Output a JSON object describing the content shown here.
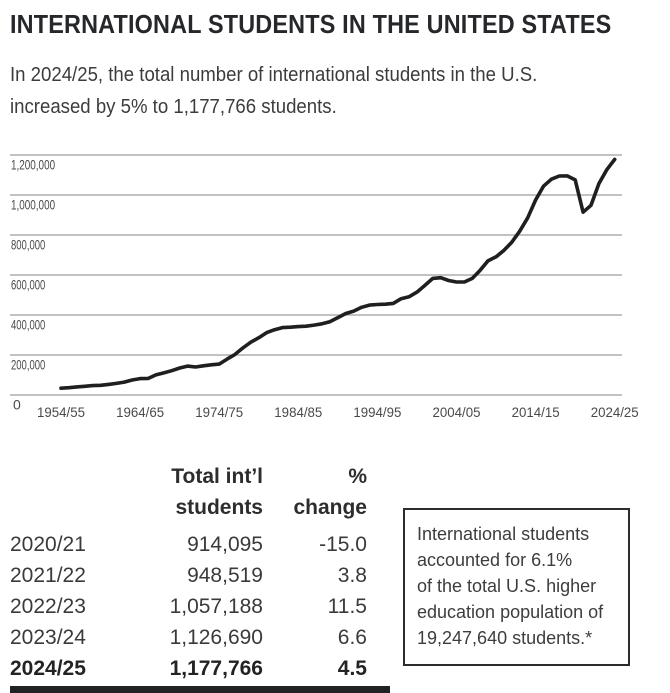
{
  "header": {
    "title": "INTERNATIONAL STUDENTS IN THE UNITED STATES",
    "subtitle": "In 2024/25, the total number of international students in the U.S.\nincreased by 5% to 1,177,766 students."
  },
  "chart_data": {
    "type": "line",
    "title": "International students in the United States, 1954/55 to 2024/25",
    "xlabel": "",
    "ylabel": "",
    "ylim": [
      0,
      1200000
    ],
    "grid": "horizontal",
    "legend": "none",
    "line_color": "#1f1f20",
    "grid_color": "#9d9d9f",
    "tick_label_color": "#4a4a4a",
    "x_tick_labels": [
      "1954/55",
      "1964/65",
      "1974/75",
      "1984/85",
      "1994/95",
      "2004/05",
      "2014/15",
      "2024/25"
    ],
    "y_tick_values": [
      0,
      200000,
      400000,
      600000,
      800000,
      1000000,
      1200000
    ],
    "y_tick_labels": [
      "0",
      "200,000",
      "400,000",
      "600,000",
      "800,000",
      "1,000,000",
      "1,200,000"
    ],
    "series": [
      {
        "name": "Total international students",
        "x": [
          "1954/55",
          "1955/56",
          "1956/57",
          "1957/58",
          "1958/59",
          "1959/60",
          "1960/61",
          "1961/62",
          "1962/63",
          "1963/64",
          "1964/65",
          "1965/66",
          "1966/67",
          "1967/68",
          "1968/69",
          "1969/70",
          "1970/71",
          "1971/72",
          "1972/73",
          "1973/74",
          "1974/75",
          "1975/76",
          "1976/77",
          "1977/78",
          "1978/79",
          "1979/80",
          "1980/81",
          "1981/82",
          "1982/83",
          "1983/84",
          "1984/85",
          "1985/86",
          "1986/87",
          "1987/88",
          "1988/89",
          "1989/90",
          "1990/91",
          "1991/92",
          "1992/93",
          "1993/94",
          "1994/95",
          "1995/96",
          "1996/97",
          "1997/98",
          "1998/99",
          "1999/00",
          "2000/01",
          "2001/02",
          "2002/03",
          "2003/04",
          "2004/05",
          "2005/06",
          "2006/07",
          "2007/08",
          "2008/09",
          "2009/10",
          "2010/11",
          "2011/12",
          "2012/13",
          "2013/14",
          "2014/15",
          "2015/16",
          "2016/17",
          "2017/18",
          "2018/19",
          "2019/20",
          "2020/21",
          "2021/22",
          "2022/23",
          "2023/24",
          "2024/25"
        ],
        "values": [
          34232,
          36494,
          40666,
          43391,
          47245,
          48486,
          53107,
          58086,
          64705,
          74814,
          82045,
          82709,
          100262,
          110315,
          121362,
          134959,
          144708,
          140126,
          146097,
          151066,
          154580,
          179344,
          203068,
          235509,
          263938,
          286343,
          311882,
          326299,
          336985,
          338894,
          342113,
          343777,
          349609,
          356187,
          366354,
          386851,
          407529,
          419585,
          438618,
          449749,
          452635,
          453787,
          457984,
          481280,
          490933,
          514723,
          547867,
          582996,
          586323,
          572509,
          565039,
          564766,
          582984,
          623805,
          671616,
          690923,
          723277,
          764495,
          819644,
          886052,
          974926,
          1043839,
          1078822,
          1094792,
          1095299,
          1075496,
          914095,
          948519,
          1057188,
          1126690,
          1177766
        ]
      }
    ]
  },
  "table": {
    "col_headers": [
      "",
      "Total int’l\nstudents",
      "%\nchange"
    ],
    "rows": [
      {
        "year": "2020/21",
        "students": "914,095",
        "change": "-15.0",
        "bold": false
      },
      {
        "year": "2021/22",
        "students": "948,519",
        "change": "3.8",
        "bold": false
      },
      {
        "year": "2022/23",
        "students": "1,057,188",
        "change": "11.5",
        "bold": false
      },
      {
        "year": "2023/24",
        "students": "1,126,690",
        "change": "6.6",
        "bold": false
      },
      {
        "year": "2024/25",
        "students": "1,177,766",
        "change": "4.5",
        "bold": true
      }
    ]
  },
  "note_box": {
    "text": "International students\naccounted for 6.1%\nof the total U.S. higher\neducation population of\n19,247,640 students.*"
  },
  "colors": {
    "title": "#26272b",
    "body_text": "#3c3c3c",
    "chart_line": "#1f1f20",
    "gridline": "#9d9d9f",
    "bottom_rule": "#222224",
    "note_border": "#2c2c2e"
  }
}
